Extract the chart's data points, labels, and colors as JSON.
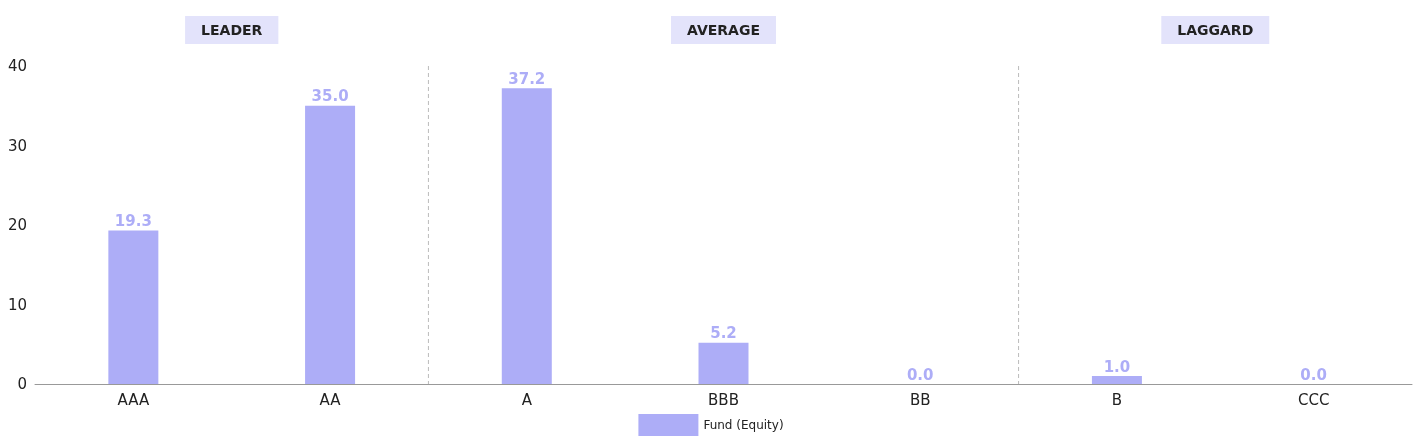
{
  "chart_data": {
    "type": "bar",
    "categories": [
      "AAA",
      "AA",
      "A",
      "BBB",
      "BB",
      "B",
      "CCC"
    ],
    "series": [
      {
        "name": "Fund (Equity)",
        "color": "#adadf7",
        "values": [
          19.3,
          35.0,
          37.2,
          5.2,
          0.0,
          1.0,
          0.0
        ],
        "value_labels": [
          "19.3",
          "35.0",
          "37.2",
          "5.2",
          "0.0",
          "1.0",
          "0.0"
        ]
      }
    ],
    "ylim": [
      0,
      40
    ],
    "yticks": [
      0,
      10,
      20,
      30,
      40
    ],
    "grid": false,
    "legend": "bottom",
    "annotations": [
      "LEADER",
      "AVERAGE",
      "LAGGARD"
    ]
  }
}
